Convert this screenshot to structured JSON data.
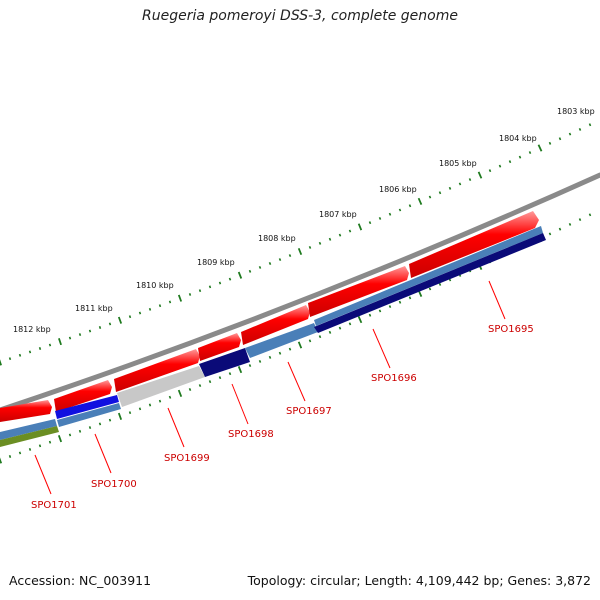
{
  "title": "Ruegeria pomeroyi DSS-3, complete genome",
  "footer": {
    "accession": "Accession: NC_003911",
    "summary": "Topology: circular; Length: 4,109,442 bp; Genes: 3,872"
  },
  "scale_labels": [
    "1803 kbp",
    "1804 kbp",
    "1805 kbp",
    "1806 kbp",
    "1807 kbp",
    "1808 kbp",
    "1809 kbp",
    "1810 kbp",
    "1811 kbp",
    "1812 kbp"
  ],
  "genes": [
    "SPO1695",
    "SPO1696",
    "SPO1697",
    "SPO1698",
    "SPO1699",
    "SPO1700",
    "SPO1701"
  ],
  "colors": {
    "backbone": "#8a8a8a",
    "cds": "#ff0000",
    "scale_ticks": "#1f7a1f",
    "label": "#cc0000",
    "navy": "#0a0a78",
    "steelblue": "#4a7fb8",
    "blue": "#1010e0",
    "lightgray": "#c8c8c8",
    "olive": "#6b8e23"
  }
}
